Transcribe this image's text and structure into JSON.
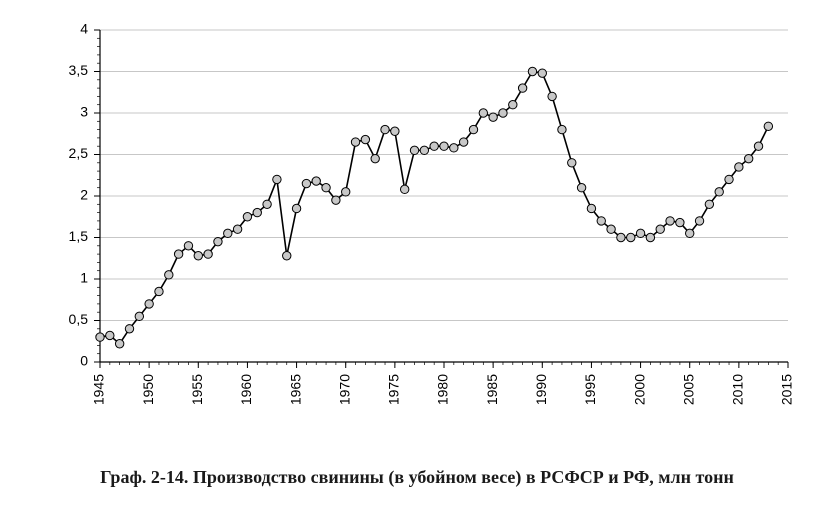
{
  "chart": {
    "type": "line",
    "background_color": "#ffffff",
    "line_color": "#000000",
    "line_width": 1.6,
    "marker": {
      "shape": "circle",
      "radius": 4.2,
      "fill": "#c8c8c8",
      "stroke": "#000000",
      "stroke_width": 1
    },
    "axis_color": "#000000",
    "gridline_color": "#b5b5b5",
    "gridline_width": 0.8,
    "tick_label_color": "#000000",
    "tick_label_fontsize": 14,
    "tick_label_fontfamily": "Arial, Helvetica, sans-serif",
    "x": {
      "lim": [
        1945,
        2015
      ],
      "tick_step": 5,
      "tick_labels": [
        "1945",
        "1950",
        "1955",
        "1960",
        "1965",
        "1970",
        "1975",
        "1980",
        "1985",
        "1990",
        "1995",
        "2000",
        "2005",
        "2010",
        "2015"
      ],
      "tick_rotation": -90,
      "minor_tick_step": 1,
      "minor_tick_len": 3,
      "major_tick_len": 6
    },
    "y": {
      "lim": [
        0,
        4
      ],
      "tick_step": 0.5,
      "tick_labels": [
        "0",
        "0,5",
        "1",
        "1,5",
        "2",
        "2,5",
        "3",
        "3,5",
        "4"
      ],
      "minor_tick_step": 0.1,
      "minor_tick_len": 3,
      "major_tick_len": 6,
      "grid": true
    },
    "series": {
      "x": [
        1945,
        1946,
        1947,
        1948,
        1949,
        1950,
        1951,
        1952,
        1953,
        1954,
        1955,
        1956,
        1957,
        1958,
        1959,
        1960,
        1961,
        1962,
        1963,
        1964,
        1965,
        1966,
        1967,
        1968,
        1969,
        1970,
        1971,
        1972,
        1973,
        1974,
        1975,
        1976,
        1977,
        1978,
        1979,
        1980,
        1981,
        1982,
        1983,
        1984,
        1985,
        1986,
        1987,
        1988,
        1989,
        1990,
        1991,
        1992,
        1993,
        1994,
        1995,
        1996,
        1997,
        1998,
        1999,
        2000,
        2001,
        2002,
        2003,
        2004,
        2005,
        2006,
        2007,
        2008,
        2009,
        2010,
        2011,
        2012,
        2013
      ],
      "y": [
        0.3,
        0.32,
        0.22,
        0.4,
        0.55,
        0.7,
        0.85,
        1.05,
        1.3,
        1.4,
        1.28,
        1.3,
        1.45,
        1.55,
        1.6,
        1.75,
        1.8,
        1.9,
        2.2,
        1.28,
        1.85,
        2.15,
        2.18,
        2.1,
        1.95,
        2.05,
        2.65,
        2.68,
        2.45,
        2.8,
        2.78,
        2.08,
        2.55,
        2.55,
        2.6,
        2.6,
        2.58,
        2.65,
        2.8,
        3.0,
        2.95,
        3.0,
        3.1,
        3.3,
        3.5,
        3.48,
        3.2,
        2.8,
        2.4,
        2.1,
        1.85,
        1.7,
        1.6,
        1.5,
        1.5,
        1.55,
        1.5,
        1.6,
        1.7,
        1.68,
        1.55,
        1.7,
        1.9,
        2.05,
        2.2,
        2.35,
        2.45,
        2.6,
        2.84
      ]
    }
  },
  "caption": {
    "text": "Граф. 2-14. Производство свинины (в убойном весе) в РСФСР и РФ, млн тонн",
    "fontsize": 18,
    "color": "#1a1a1a"
  }
}
